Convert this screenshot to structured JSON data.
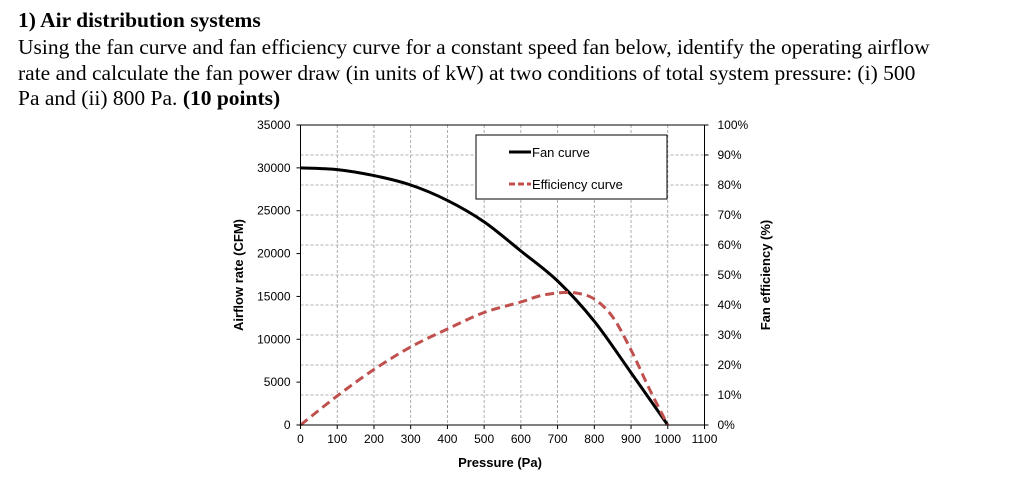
{
  "question": {
    "title": "1) Air distribution systems",
    "lines": [
      "Using the fan curve and fan efficiency curve for a constant speed fan below, identify the operating airflow",
      "rate and calculate the fan power draw (in units of kW) at two conditions of total system pressure: (i) 500",
      "Pa and (ii) 800 Pa. "
    ],
    "points": "(10 points)"
  },
  "chart_data": {
    "type": "line",
    "xlabel": "Pressure (Pa)",
    "ylabel": "Airflow rate (CFM)",
    "y2label": "Fan efficiency (%)",
    "xlim": [
      0,
      1100
    ],
    "ylim": [
      0,
      35000
    ],
    "y2lim": [
      0,
      100
    ],
    "xticks": [
      "0",
      "100",
      "200",
      "300",
      "400",
      "500",
      "600",
      "700",
      "800",
      "900",
      "1000",
      "1100"
    ],
    "yticks": [
      "0",
      "5000",
      "10000",
      "15000",
      "20000",
      "25000",
      "30000",
      "35000"
    ],
    "y2ticks": [
      "0%",
      "10%",
      "20%",
      "30%",
      "40%",
      "50%",
      "60%",
      "70%",
      "80%",
      "90%",
      "100%"
    ],
    "grid": true,
    "legend_placement": "top-right",
    "series": [
      {
        "name": "Fan curve",
        "axis": "left",
        "color": "#000000",
        "style": "solid",
        "x": [
          0,
          100,
          200,
          300,
          400,
          500,
          600,
          700,
          800,
          900,
          1000
        ],
        "values": [
          30000,
          29800,
          29100,
          28000,
          26200,
          23700,
          20300,
          16800,
          12100,
          6100,
          0
        ]
      },
      {
        "name": "Efficiency curve",
        "axis": "right",
        "color": "#c0504d",
        "style": "dashed",
        "x": [
          0,
          100,
          200,
          300,
          400,
          500,
          600,
          650,
          700,
          750,
          800,
          850,
          900,
          950,
          1000
        ],
        "values": [
          0,
          9.7,
          18.5,
          26,
          32,
          37.5,
          41,
          43,
          44,
          44,
          42,
          36,
          25,
          12,
          0
        ]
      }
    ]
  }
}
